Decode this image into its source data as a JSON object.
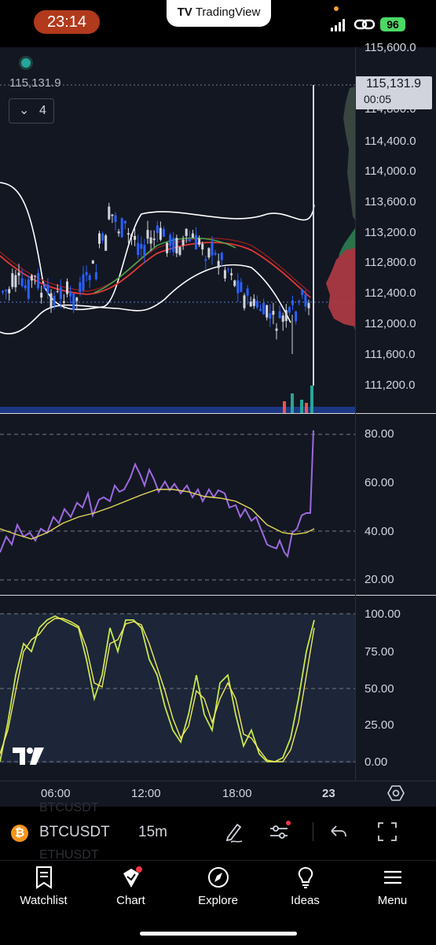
{
  "status_bar": {
    "time": "23:14",
    "battery": "96"
  },
  "brand": {
    "logo": "TV",
    "name": "TradingView"
  },
  "chart": {
    "current_price": "115,131.9",
    "countdown": "00:05",
    "indicator_count": "4",
    "price_axis": [
      "115,600.0",
      "114,800.0",
      "114,400.0",
      "114,000.0",
      "113,600.0",
      "113,200.0",
      "112,800.0",
      "112,400.0",
      "112,000.0",
      "111,600.0",
      "111,200.0"
    ],
    "rsi_axis": [
      "80.00",
      "60.00",
      "40.00",
      "20.00"
    ],
    "stoch_axis": [
      "100.00",
      "75.00",
      "50.00",
      "25.00",
      "0.00"
    ],
    "time_axis": [
      "06:00",
      "12:00",
      "18:00",
      "23"
    ]
  },
  "toolbar": {
    "symbol": "BTCUSDT",
    "interval": "15m",
    "ghost_top": "BTCUSDT",
    "ghost_bottom": "ETHUSDT"
  },
  "tabs": [
    {
      "label": "Watchlist",
      "icon": "bookmark-icon"
    },
    {
      "label": "Chart",
      "icon": "chart-icon"
    },
    {
      "label": "Explore",
      "icon": "compass-icon"
    },
    {
      "label": "Ideas",
      "icon": "lightbulb-icon"
    },
    {
      "label": "Menu",
      "icon": "menu-icon"
    }
  ]
}
